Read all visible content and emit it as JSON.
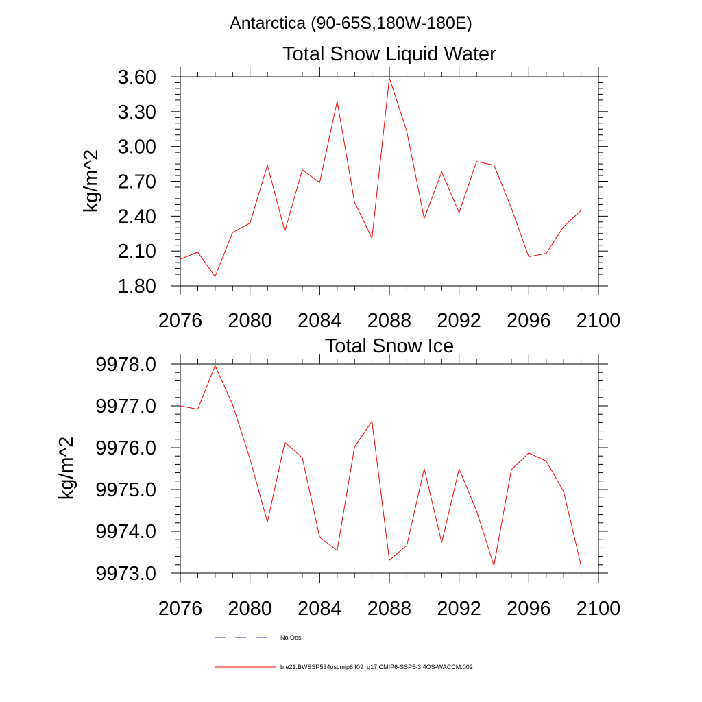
{
  "supertitle": "Antarctica (90-65S,180W-180E)",
  "chart_data": [
    {
      "type": "line",
      "title": "Total Snow Liquid Water",
      "xlabel": "",
      "ylabel": "kg/m^2",
      "xlim": [
        2076,
        2100
      ],
      "ylim": [
        1.8,
        3.6
      ],
      "xticks": [
        2076,
        2080,
        2084,
        2088,
        2092,
        2096,
        2100
      ],
      "xtick_labels": [
        "2076",
        "2080",
        "2084",
        "2088",
        "2092",
        "2096",
        "2100"
      ],
      "yticks": [
        1.8,
        2.1,
        2.4,
        2.7,
        3.0,
        3.3,
        3.6
      ],
      "ytick_labels": [
        "1.80",
        "2.10",
        "2.40",
        "2.70",
        "3.00",
        "3.30",
        "3.60"
      ],
      "x": [
        2076,
        2077,
        2078,
        2079,
        2080,
        2081,
        2082,
        2083,
        2084,
        2085,
        2086,
        2087,
        2088,
        2089,
        2090,
        2091,
        2092,
        2093,
        2094,
        2095,
        2096,
        2097,
        2098,
        2099
      ],
      "series": [
        {
          "name": "b.e21.BWSSP534oscmip6.f09_g17.CMIP6-SSP5-3.4OS-WACCM.002",
          "color": "#ff0000",
          "values": [
            2.03,
            2.09,
            1.88,
            2.26,
            2.34,
            2.84,
            2.27,
            2.8,
            2.69,
            3.39,
            2.52,
            2.21,
            3.59,
            3.13,
            2.38,
            2.78,
            2.43,
            2.87,
            2.84,
            2.47,
            2.05,
            2.08,
            2.31,
            2.45
          ]
        }
      ]
    },
    {
      "type": "line",
      "title": "Total Snow Ice",
      "xlabel": "",
      "ylabel": "kg/m^2",
      "xlim": [
        2076,
        2100
      ],
      "ylim": [
        9973.0,
        9978.0
      ],
      "xticks": [
        2076,
        2080,
        2084,
        2088,
        2092,
        2096,
        2100
      ],
      "xtick_labels": [
        "2076",
        "2080",
        "2084",
        "2088",
        "2092",
        "2096",
        "2100"
      ],
      "yticks": [
        9973.0,
        9974.0,
        9975.0,
        9976.0,
        9977.0,
        9978.0
      ],
      "ytick_labels": [
        "9973.0",
        "9974.0",
        "9975.0",
        "9976.0",
        "9977.0",
        "9978.0"
      ],
      "x": [
        2076,
        2077,
        2078,
        2079,
        2080,
        2081,
        2082,
        2083,
        2084,
        2085,
        2086,
        2087,
        2088,
        2089,
        2090,
        2091,
        2092,
        2093,
        2094,
        2095,
        2096,
        2097,
        2098,
        2099
      ],
      "series": [
        {
          "name": "b.e21.BWSSP534oscmip6.f09_g17.CMIP6-SSP5-3.4OS-WACCM.002",
          "color": "#ff0000",
          "values": [
            9977.0,
            9976.92,
            9977.96,
            9977.03,
            9975.73,
            9974.22,
            9976.13,
            9975.76,
            9973.86,
            9973.54,
            9976.02,
            9976.63,
            9973.31,
            9973.66,
            9975.5,
            9973.73,
            9975.49,
            9974.49,
            9973.18,
            9975.47,
            9975.87,
            9975.68,
            9974.95,
            9973.18
          ]
        }
      ]
    }
  ],
  "legend": [
    {
      "label": "No Obs",
      "style": "dashed",
      "color": "#3a3aa0"
    },
    {
      "label": "b.e21.BWSSP534oscmip6.f09_g17.CMIP6-SSP5-3.4OS-WACCM.002",
      "style": "solid",
      "color": "#ff0000"
    }
  ]
}
